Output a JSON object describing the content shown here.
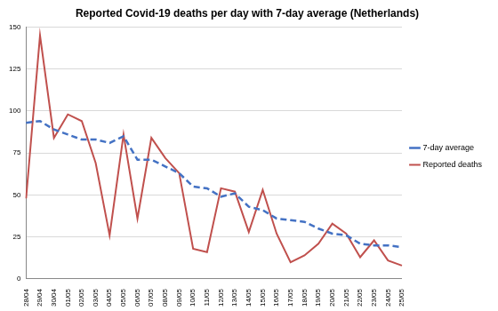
{
  "chart_data": {
    "type": "line",
    "title": "Reported Covid-19 deaths per day with 7-day average (Netherlands)",
    "categories": [
      "28/04",
      "29/04",
      "30/04",
      "01/05",
      "02/05",
      "03/05",
      "04/05",
      "05/05",
      "06/05",
      "07/05",
      "08/05",
      "09/05",
      "10/05",
      "11/05",
      "12/05",
      "13/05",
      "14/05",
      "15/05",
      "16/05",
      "17/05",
      "18/05",
      "19/05",
      "20/05",
      "21/05",
      "22/05",
      "23/05",
      "24/05",
      "25/05"
    ],
    "series": [
      {
        "name": "7-day average",
        "color": "#4472c4",
        "line_style": "dashed",
        "marker": "none",
        "values": [
          93,
          94,
          89,
          86,
          83,
          83,
          81,
          85,
          71,
          71,
          67,
          63,
          55,
          54,
          49,
          51,
          43,
          41,
          36,
          35,
          34,
          30,
          27,
          26,
          21,
          20,
          20,
          19
        ]
      },
      {
        "name": "Reported deaths",
        "color": "#c0504d",
        "line_style": "solid",
        "marker": "none",
        "values": [
          48,
          145,
          84,
          98,
          94,
          69,
          26,
          86,
          36,
          84,
          72,
          63,
          18,
          16,
          54,
          52,
          28,
          53,
          27,
          10,
          14,
          21,
          33,
          27,
          13,
          23,
          11,
          8
        ]
      }
    ],
    "ylim": [
      0,
      150
    ],
    "yticks": [
      0,
      25,
      50,
      75,
      100,
      125,
      150
    ],
    "grid": true,
    "legend": "right"
  }
}
